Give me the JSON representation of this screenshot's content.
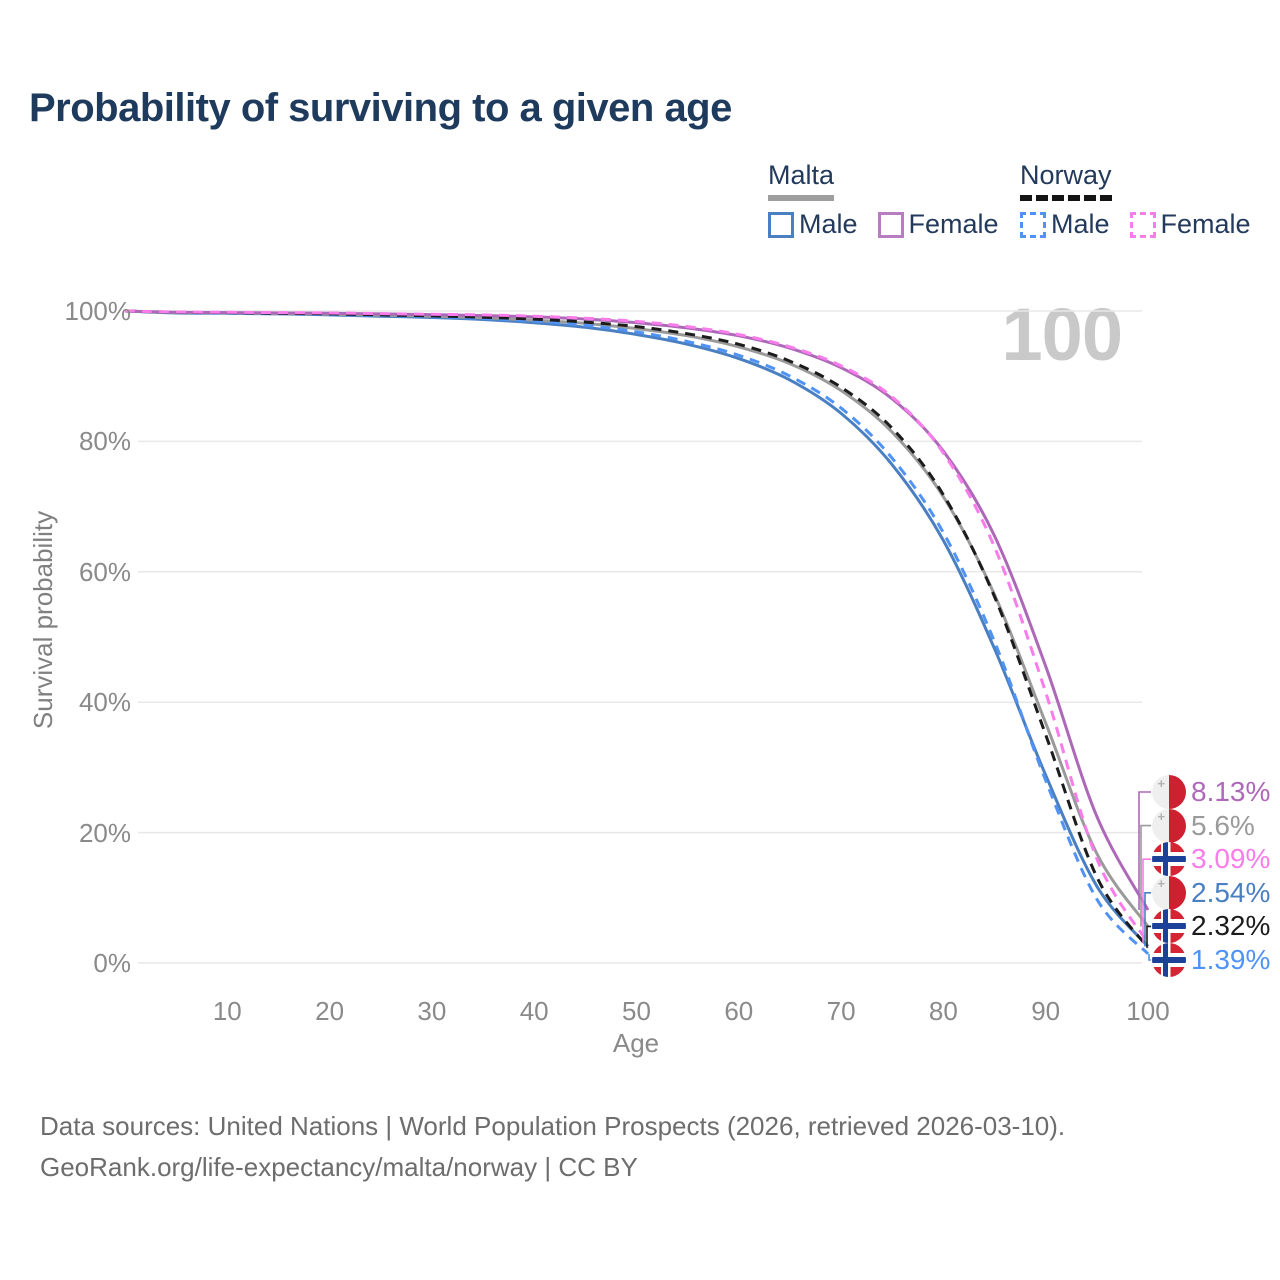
{
  "title": "Probability of surviving to a given age",
  "watermark_age": "100",
  "legend": {
    "groups": [
      {
        "country": "Malta",
        "entries": [
          {
            "label": "Male"
          },
          {
            "label": "Female"
          }
        ]
      },
      {
        "country": "Norway",
        "entries": [
          {
            "label": "Male"
          },
          {
            "label": "Female"
          }
        ]
      }
    ]
  },
  "chart_data": {
    "type": "line",
    "title": "Probability of surviving to a given age",
    "xlabel": "Age",
    "ylabel": "Survival probability",
    "xlim": [
      0,
      100
    ],
    "ylim": [
      0,
      100
    ],
    "grid": "horizontal",
    "legend_position": "top-right",
    "x_ticks": [
      10,
      20,
      30,
      40,
      50,
      60,
      70,
      80,
      90,
      100
    ],
    "y_ticks": [
      {
        "value": 0,
        "label": "0%"
      },
      {
        "value": 20,
        "label": "20%"
      },
      {
        "value": 40,
        "label": "40%"
      },
      {
        "value": 60,
        "label": "60%"
      },
      {
        "value": 80,
        "label": "80%"
      },
      {
        "value": 100,
        "label": "100%"
      }
    ],
    "x": [
      0,
      5,
      10,
      15,
      20,
      25,
      30,
      35,
      40,
      45,
      50,
      55,
      60,
      65,
      70,
      75,
      80,
      85,
      90,
      95,
      100
    ],
    "series": [
      {
        "name": "Malta Male",
        "country": "Malta",
        "sex": "Male",
        "line_style": "solid",
        "color": "#4a7fc1",
        "flag": "malta",
        "end_label": "2.54%",
        "values": [
          100,
          99.7,
          99.65,
          99.55,
          99.4,
          99.2,
          99.0,
          98.7,
          98.2,
          97.5,
          96.4,
          94.9,
          92.7,
          89.4,
          84.3,
          76.4,
          64.8,
          48.2,
          28.8,
          11.8,
          2.54
        ]
      },
      {
        "name": "Malta Both sexes",
        "country": "Malta",
        "sex": "Both",
        "line_style": "solid",
        "color": "#9a9a9a",
        "flag": "malta",
        "end_label": "5.6%",
        "values": [
          100,
          99.75,
          99.7,
          99.6,
          99.5,
          99.35,
          99.2,
          98.95,
          98.6,
          98.1,
          97.3,
          96.2,
          94.5,
          91.9,
          87.8,
          81.4,
          71.5,
          56.5,
          36.8,
          16.8,
          5.6
        ]
      },
      {
        "name": "Malta Female",
        "country": "Malta",
        "sex": "Female",
        "line_style": "solid",
        "color": "#ae68b8",
        "flag": "malta",
        "end_label": "8.13%",
        "values": [
          100,
          99.8,
          99.75,
          99.7,
          99.65,
          99.55,
          99.45,
          99.3,
          99.1,
          98.75,
          98.2,
          97.4,
          96.2,
          94.3,
          91.3,
          86.5,
          78.5,
          65.5,
          45.5,
          22.5,
          8.13
        ]
      },
      {
        "name": "Norway Male",
        "country": "Norway",
        "sex": "Male",
        "line_style": "dashed",
        "color": "#5093f5",
        "flag": "norway",
        "end_label": "1.39%",
        "values": [
          100,
          99.75,
          99.7,
          99.6,
          99.45,
          99.3,
          99.1,
          98.85,
          98.45,
          97.8,
          96.8,
          95.3,
          93.2,
          90.0,
          85.1,
          77.4,
          66.0,
          49.3,
          28.0,
          9.8,
          1.39
        ]
      },
      {
        "name": "Norway Both sexes",
        "country": "Norway",
        "sex": "Both",
        "line_style": "dashed",
        "color": "#1c1c1c",
        "flag": "norway",
        "end_label": "2.32%",
        "values": [
          100,
          99.8,
          99.75,
          99.65,
          99.55,
          99.4,
          99.25,
          99.05,
          98.75,
          98.3,
          97.6,
          96.5,
          94.9,
          92.3,
          88.3,
          82.0,
          71.8,
          56.2,
          35.0,
          13.2,
          2.32
        ]
      },
      {
        "name": "Norway Female",
        "country": "Norway",
        "sex": "Female",
        "line_style": "dashed",
        "color": "#f97ceb",
        "flag": "norway",
        "end_label": "3.09%",
        "values": [
          100,
          99.85,
          99.8,
          99.75,
          99.7,
          99.6,
          99.5,
          99.4,
          99.2,
          98.9,
          98.4,
          97.6,
          96.4,
          94.5,
          91.6,
          86.8,
          78.2,
          63.8,
          41.5,
          16.0,
          3.09
        ]
      }
    ]
  },
  "footer": {
    "line1": "Data sources: United Nations | World Population Prospects (2026, retrieved 2026-03-10).",
    "line2": "GeoRank.org/life-expectancy/malta/norway | CC BY"
  }
}
